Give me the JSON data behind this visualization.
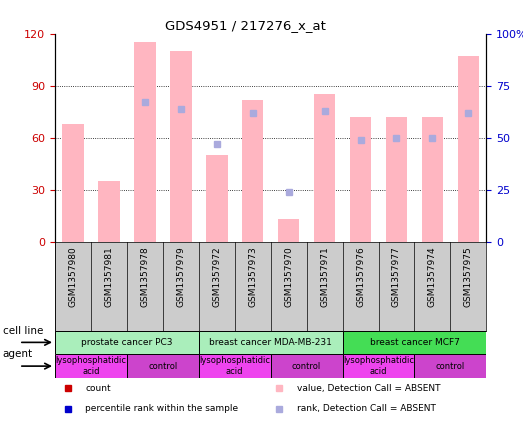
{
  "title": "GDS4951 / 217276_x_at",
  "samples": [
    "GSM1357980",
    "GSM1357981",
    "GSM1357978",
    "GSM1357979",
    "GSM1357972",
    "GSM1357973",
    "GSM1357970",
    "GSM1357971",
    "GSM1357976",
    "GSM1357977",
    "GSM1357974",
    "GSM1357975"
  ],
  "bar_values_absent": [
    68,
    35,
    115,
    110,
    50,
    82,
    13,
    85,
    72,
    72,
    72,
    107
  ],
  "rank_absent": [
    null,
    null,
    67,
    64,
    47,
    62,
    24,
    63,
    49,
    50,
    50,
    62
  ],
  "ylim_left": [
    0,
    120
  ],
  "ylim_right": [
    0,
    100
  ],
  "yticks_left": [
    0,
    30,
    60,
    90,
    120
  ],
  "ytick_labels_left": [
    "0",
    "30",
    "60",
    "90",
    "120"
  ],
  "yticks_right": [
    0,
    25,
    50,
    75,
    100
  ],
  "ytick_labels_right": [
    "0",
    "25",
    "50",
    "75",
    "100%"
  ],
  "cell_line_groups": [
    {
      "label": "prostate cancer PC3",
      "start": 0,
      "end": 4,
      "color": "#aaeebb"
    },
    {
      "label": "breast cancer MDA-MB-231",
      "start": 4,
      "end": 8,
      "color": "#aaeebb"
    },
    {
      "label": "breast cancer MCF7",
      "start": 8,
      "end": 12,
      "color": "#44dd55"
    }
  ],
  "cell_line_colors": [
    "#aaeebb",
    "#aaeebb",
    "#44dd55"
  ],
  "agent_groups": [
    {
      "label": "lysophosphatidic\nacid",
      "start": 0,
      "end": 2
    },
    {
      "label": "control",
      "start": 2,
      "end": 4
    },
    {
      "label": "lysophosphatidic\nacid",
      "start": 4,
      "end": 6
    },
    {
      "label": "control",
      "start": 6,
      "end": 8
    },
    {
      "label": "lysophosphatidic\nacid",
      "start": 8,
      "end": 10
    },
    {
      "label": "control",
      "start": 10,
      "end": 12
    }
  ],
  "agent_colors": [
    "#ee44ee",
    "#cc44cc",
    "#ee44ee",
    "#cc44cc",
    "#ee44ee",
    "#cc44cc"
  ],
  "bar_color_absent": "#ffb6c1",
  "rank_color_absent": "#aaaadd",
  "legend_items": [
    {
      "color": "#cc0000",
      "label": "count"
    },
    {
      "color": "#0000cc",
      "label": "percentile rank within the sample"
    },
    {
      "color": "#ffb6c1",
      "label": "value, Detection Call = ABSENT"
    },
    {
      "color": "#aaaadd",
      "label": "rank, Detection Call = ABSENT"
    }
  ],
  "background_color": "#ffffff",
  "tick_color_left": "#cc0000",
  "tick_color_right": "#0000cc",
  "xticklabel_bg": "#cccccc",
  "cell_line_label": "cell line",
  "agent_label": "agent"
}
